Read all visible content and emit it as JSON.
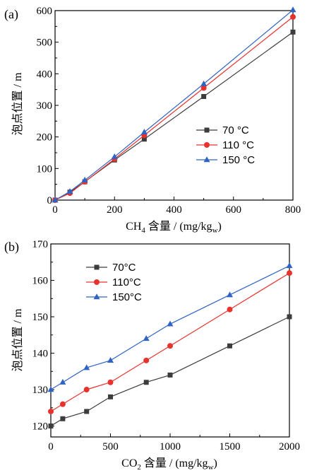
{
  "colors": {
    "s70": "#3c3c3c",
    "s110": "#e8322e",
    "s150": "#2f63c4",
    "axis": "#000000"
  },
  "chart_data": [
    {
      "panel_label": "(a)",
      "type": "line",
      "xlabel": "CH",
      "xlabel_sub": "4",
      "xlabel_rest": " 含量 / (mg/kg",
      "xlabel_sub2": "w",
      "xlabel_end": ")",
      "ylabel": "泡点位置 / m",
      "xlim": [
        0,
        800
      ],
      "ylim": [
        0,
        600
      ],
      "xticks": [
        0,
        200,
        400,
        600,
        800
      ],
      "yticks": [
        0,
        100,
        200,
        300,
        400,
        500,
        600
      ],
      "x": [
        0,
        50,
        100,
        200,
        300,
        500,
        800
      ],
      "legend_position": "middle-right",
      "series": [
        {
          "name": "70 °C",
          "marker": "square",
          "color": "#3c3c3c",
          "values": [
            0,
            25,
            58,
            127,
            193,
            328,
            532
          ]
        },
        {
          "name": "110 °C",
          "marker": "circle",
          "color": "#e8322e",
          "values": [
            0,
            22,
            58,
            130,
            205,
            355,
            580
          ]
        },
        {
          "name": "150 °C",
          "marker": "triangle",
          "color": "#2f63c4",
          "values": [
            0,
            27,
            63,
            137,
            215,
            368,
            602
          ]
        }
      ]
    },
    {
      "panel_label": "(b)",
      "type": "line",
      "xlabel": "CO",
      "xlabel_sub": "2",
      "xlabel_rest": " 含量 / (mg/kg",
      "xlabel_sub2": "w",
      "xlabel_end": ")",
      "ylabel": "泡点位置 / m",
      "xlim": [
        0,
        2000
      ],
      "ylim": [
        117,
        170
      ],
      "xticks": [
        0,
        500,
        1000,
        1500,
        2000
      ],
      "yticks": [
        120,
        130,
        140,
        150,
        160,
        170
      ],
      "x": [
        0,
        100,
        300,
        500,
        800,
        1000,
        1500,
        2000
      ],
      "legend_position": "top-left",
      "series": [
        {
          "name": "70°C",
          "marker": "square",
          "color": "#3c3c3c",
          "values": [
            120,
            122,
            124,
            128,
            132,
            134,
            142,
            150
          ]
        },
        {
          "name": "110°C",
          "marker": "circle",
          "color": "#e8322e",
          "values": [
            124,
            126,
            130,
            132,
            138,
            142,
            152,
            162
          ]
        },
        {
          "name": "150°C",
          "marker": "triangle",
          "color": "#2f63c4",
          "values": [
            130,
            132,
            136,
            138,
            144,
            148,
            156,
            164
          ]
        }
      ]
    }
  ]
}
